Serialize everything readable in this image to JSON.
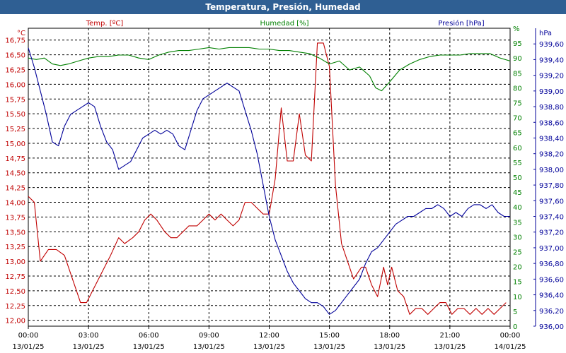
{
  "window": {
    "title": "Temperatura, Presión, Humedad"
  },
  "colors": {
    "temp": "#c00000",
    "hum": "#008000",
    "pres": "#000099",
    "title_bg": "#2f5f93",
    "grid": "#000000"
  },
  "chart_data": {
    "type": "line",
    "title": "Temperatura, Presión, Humedad",
    "grid": true,
    "axes": {
      "temp": {
        "unit": "°C",
        "label": "Temp. [ºC]",
        "range": [
          11.9,
          16.95
        ],
        "ticks": [
          "12,00",
          "12,25",
          "12,50",
          "12,75",
          "13,00",
          "13,25",
          "13,50",
          "13,75",
          "14,00",
          "14,25",
          "14,50",
          "14,75",
          "15,00",
          "15,25",
          "15,50",
          "15,75",
          "16,00",
          "16,25",
          "16,50",
          "16,75"
        ]
      },
      "hum": {
        "unit": "%",
        "label": "Humedad [%]",
        "range": [
          0,
          100
        ],
        "ticks": [
          "0",
          "5",
          "10",
          "15",
          "20",
          "25",
          "30",
          "35",
          "40",
          "45",
          "50",
          "55",
          "60",
          "65",
          "70",
          "75",
          "80",
          "85",
          "90",
          "95",
          "%"
        ]
      },
      "pres": {
        "unit": "hPa",
        "label": "Presión [hPa]",
        "range": [
          936.0,
          939.8
        ],
        "ticks": [
          "936,00",
          "936,20",
          "936,40",
          "936,60",
          "936,80",
          "937,00",
          "937,20",
          "937,40",
          "937,60",
          "937,80",
          "938,00",
          "938,20",
          "938,40",
          "938,60",
          "938,80",
          "939,00",
          "939,20",
          "939,40",
          "939,60"
        ]
      }
    },
    "x_ticks": [
      {
        "time": "00:00",
        "date": "13/01/25"
      },
      {
        "time": "03:00",
        "date": "13/01/25"
      },
      {
        "time": "06:00",
        "date": "13/01/25"
      },
      {
        "time": "09:00",
        "date": "13/01/25"
      },
      {
        "time": "12:00",
        "date": "13/01/25"
      },
      {
        "time": "15:00",
        "date": "13/01/25"
      },
      {
        "time": "18:00",
        "date": "13/01/25"
      },
      {
        "time": "21:00",
        "date": "13/01/25"
      },
      {
        "time": "00:00",
        "date": "14/01/25"
      }
    ],
    "x_range_hours": [
      0,
      24
    ],
    "series": [
      {
        "name": "Temp. [ºC]",
        "axis": "temp",
        "x": [
          0,
          0.3,
          0.6,
          1.0,
          1.4,
          1.8,
          2.2,
          2.6,
          2.9,
          3.2,
          3.5,
          3.8,
          4.1,
          4.5,
          4.8,
          5.2,
          5.5,
          5.8,
          6.1,
          6.4,
          6.8,
          7.1,
          7.4,
          7.7,
          8.0,
          8.4,
          8.7,
          9.0,
          9.3,
          9.6,
          9.9,
          10.2,
          10.5,
          10.8,
          11.1,
          11.4,
          11.7,
          12.0,
          12.3,
          12.6,
          12.9,
          13.2,
          13.5,
          13.8,
          14.1,
          14.4,
          14.7,
          15.0,
          15.3,
          15.6,
          15.9,
          16.2,
          16.4,
          16.6,
          16.8,
          17.1,
          17.4,
          17.7,
          17.9,
          18.1,
          18.4,
          18.7,
          19.0,
          19.3,
          19.6,
          19.9,
          20.2,
          20.5,
          20.8,
          21.1,
          21.4,
          21.7,
          22.0,
          22.3,
          22.6,
          22.9,
          23.2,
          23.5,
          23.8
        ],
        "y": [
          14.1,
          14.0,
          13.0,
          13.2,
          13.2,
          13.1,
          12.7,
          12.3,
          12.3,
          12.5,
          12.7,
          12.9,
          13.1,
          13.4,
          13.3,
          13.4,
          13.5,
          13.7,
          13.8,
          13.7,
          13.5,
          13.4,
          13.4,
          13.5,
          13.6,
          13.6,
          13.7,
          13.8,
          13.7,
          13.8,
          13.7,
          13.6,
          13.7,
          14.0,
          14.0,
          13.9,
          13.8,
          13.8,
          14.4,
          15.6,
          14.7,
          14.7,
          15.5,
          14.8,
          14.7,
          16.7,
          16.7,
          16.3,
          14.3,
          13.3,
          13.0,
          12.7,
          12.8,
          12.9,
          12.9,
          12.6,
          12.4,
          12.9,
          12.6,
          12.9,
          12.5,
          12.4,
          12.1,
          12.2,
          12.2,
          12.1,
          12.2,
          12.3,
          12.3,
          12.1,
          12.2,
          12.2,
          12.1,
          12.2,
          12.1,
          12.2,
          12.1,
          12.2,
          12.3
        ]
      },
      {
        "name": "Humedad [%]",
        "axis": "hum",
        "x": [
          0,
          0.4,
          0.8,
          1.2,
          1.6,
          2.0,
          2.5,
          3.0,
          3.5,
          4.0,
          4.5,
          5.0,
          5.5,
          6.0,
          6.5,
          7.0,
          7.5,
          8.0,
          8.5,
          9.0,
          9.5,
          10.0,
          10.5,
          11.0,
          11.5,
          12.0,
          12.5,
          13.0,
          13.5,
          14.0,
          14.5,
          15.0,
          15.5,
          16.0,
          16.5,
          17.0,
          17.3,
          17.6,
          18.0,
          18.5,
          19.0,
          19.5,
          20.0,
          20.5,
          21.0,
          21.5,
          22.0,
          22.5,
          23.0,
          23.5,
          24.0
        ],
        "y": [
          90,
          89.5,
          90,
          88,
          87.5,
          88,
          89,
          90,
          90.5,
          90.5,
          91,
          91,
          90,
          89.5,
          91,
          92,
          92.5,
          92.5,
          93,
          93.5,
          93,
          93.5,
          93.5,
          93.5,
          93,
          93,
          92.5,
          92.5,
          92,
          91.5,
          90,
          88,
          89,
          86,
          87,
          84,
          80,
          79,
          82,
          86,
          88,
          89.5,
          90.5,
          91,
          91,
          91,
          91.5,
          91.5,
          91.5,
          90,
          89
        ]
      },
      {
        "name": "Presión [hPa]",
        "axis": "pres",
        "x": [
          0,
          0.3,
          0.6,
          0.9,
          1.2,
          1.5,
          1.8,
          2.1,
          2.4,
          2.7,
          3.0,
          3.3,
          3.6,
          3.9,
          4.2,
          4.5,
          4.8,
          5.1,
          5.4,
          5.7,
          6.0,
          6.3,
          6.6,
          6.9,
          7.2,
          7.5,
          7.8,
          8.1,
          8.4,
          8.7,
          9.0,
          9.3,
          9.6,
          9.9,
          10.2,
          10.5,
          10.8,
          11.1,
          11.4,
          11.7,
          12.0,
          12.3,
          12.6,
          12.9,
          13.2,
          13.5,
          13.8,
          14.1,
          14.4,
          14.7,
          15.0,
          15.3,
          15.6,
          15.9,
          16.2,
          16.5,
          16.8,
          17.1,
          17.4,
          17.7,
          18.0,
          18.3,
          18.6,
          18.9,
          19.2,
          19.5,
          19.8,
          20.1,
          20.4,
          20.7,
          21.0,
          21.3,
          21.6,
          21.9,
          22.2,
          22.5,
          22.8,
          23.1,
          23.4,
          23.7,
          24.0
        ],
        "y": [
          939.55,
          939.3,
          939.0,
          938.7,
          938.35,
          938.3,
          938.55,
          938.7,
          938.75,
          938.8,
          938.85,
          938.8,
          938.55,
          938.35,
          938.25,
          938.0,
          938.05,
          938.1,
          938.25,
          938.4,
          938.45,
          938.5,
          938.45,
          938.5,
          938.45,
          938.3,
          938.25,
          938.5,
          938.75,
          938.9,
          938.95,
          939.0,
          939.05,
          939.1,
          939.05,
          939.0,
          938.75,
          938.5,
          938.2,
          937.8,
          937.4,
          937.1,
          936.9,
          936.7,
          936.55,
          936.45,
          936.35,
          936.3,
          936.3,
          936.25,
          936.15,
          936.2,
          936.3,
          936.4,
          936.5,
          936.6,
          936.8,
          936.95,
          937.0,
          937.1,
          937.2,
          937.3,
          937.35,
          937.4,
          937.4,
          937.45,
          937.5,
          937.5,
          937.55,
          937.5,
          937.4,
          937.45,
          937.4,
          937.5,
          937.55,
          937.55,
          937.5,
          937.55,
          937.45,
          937.4,
          937.4
        ]
      }
    ]
  }
}
